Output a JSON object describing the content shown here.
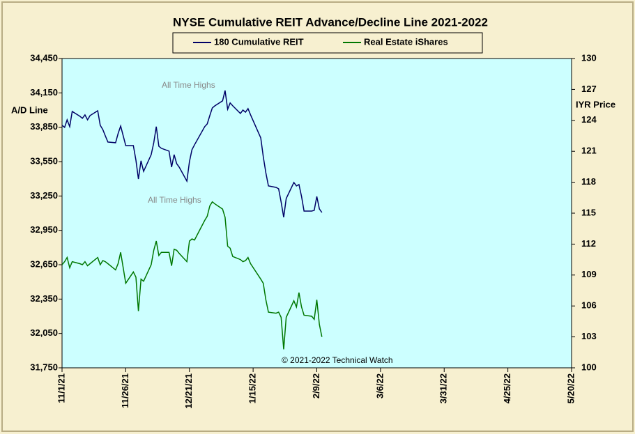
{
  "chart_data": {
    "type": "line",
    "title": "NYSE Cumulative  REIT Advance/Decline  Line 2021-2022",
    "y_label": "A/D Line",
    "y2_label": "IYR Price",
    "annotations": [
      "All Time Highs",
      "All Time Highs",
      "© 2021-2022  Technical Watch"
    ],
    "x": [
      "11/1/21",
      "11/2/21",
      "11/3/21",
      "11/4/21",
      "11/5/21",
      "11/8/21",
      "11/9/21",
      "11/10/21",
      "11/11/21",
      "11/12/21",
      "11/15/21",
      "11/16/21",
      "11/17/21",
      "11/18/21",
      "11/19/21",
      "11/22/21",
      "11/23/21",
      "11/24/21",
      "11/26/21",
      "11/29/21",
      "11/30/21",
      "12/1/21",
      "12/2/21",
      "12/3/21",
      "12/6/21",
      "12/7/21",
      "12/8/21",
      "12/9/21",
      "12/10/21",
      "12/13/21",
      "12/14/21",
      "12/15/21",
      "12/16/21",
      "12/17/21",
      "12/20/21",
      "12/21/21",
      "12/22/21",
      "12/23/21",
      "12/27/21",
      "12/28/21",
      "12/29/21",
      "12/30/21",
      "12/31/21",
      "1/3/22",
      "1/4/22",
      "1/5/22",
      "1/6/22",
      "1/7/22",
      "1/10/22",
      "1/11/22",
      "1/12/22",
      "1/13/22",
      "1/14/22",
      "1/18/22",
      "1/19/22",
      "1/20/22",
      "1/21/22",
      "1/24/22",
      "1/25/22",
      "1/26/22",
      "1/27/22",
      "1/28/22",
      "1/31/22",
      "2/1/22",
      "2/2/22",
      "2/3/22",
      "2/4/22",
      "2/7/22",
      "2/8/22",
      "2/9/22",
      "2/10/22",
      "2/11/22"
    ],
    "series": [
      {
        "name": "180 Cumulative REIT",
        "color": "#000066",
        "values": [
          33867,
          33849,
          33915,
          33855,
          33988,
          33946,
          33928,
          33958,
          33915,
          33952,
          33994,
          33867,
          33830,
          33775,
          33721,
          33715,
          33794,
          33861,
          33690,
          33690,
          33563,
          33398,
          33557,
          33465,
          33611,
          33715,
          33855,
          33684,
          33666,
          33642,
          33502,
          33611,
          33532,
          33502,
          33380,
          33550,
          33654,
          33697,
          33855,
          33879,
          33952,
          34019,
          34037,
          34080,
          34171,
          34007,
          34062,
          34037,
          33970,
          34000,
          33982,
          34013,
          33958,
          33757,
          33593,
          33453,
          33338,
          33325,
          33313,
          33198,
          33064,
          33228,
          33368,
          33338,
          33350,
          33246,
          33118,
          33118,
          33125,
          33246,
          33137,
          33106
        ]
      },
      {
        "name": "Real Estate iShares",
        "color": "#007700",
        "axis": "y2",
        "values": [
          110.0,
          110.3,
          110.7,
          109.7,
          110.3,
          110.1,
          110.0,
          110.3,
          109.9,
          110.1,
          110.7,
          110.0,
          110.4,
          110.3,
          110.1,
          109.5,
          110.1,
          111.2,
          108.2,
          109.3,
          108.8,
          105.5,
          108.6,
          108.4,
          110.0,
          111.4,
          112.3,
          110.9,
          111.2,
          111.2,
          109.9,
          111.5,
          111.4,
          111.1,
          110.3,
          112.3,
          112.5,
          112.4,
          114.3,
          114.7,
          115.7,
          116.1,
          115.9,
          115.4,
          114.6,
          111.8,
          111.6,
          110.8,
          110.5,
          110.3,
          110.4,
          110.7,
          110.1,
          108.6,
          108.2,
          106.6,
          105.4,
          105.3,
          105.4,
          104.9,
          101.8,
          104.9,
          106.5,
          105.9,
          107.3,
          105.9,
          105.1,
          105.0,
          104.7,
          106.6,
          104.2,
          103.0
        ]
      }
    ],
    "xlim": [
      "11/1/21",
      "5/20/22"
    ],
    "xticks": [
      "11/1/21",
      "11/26/21",
      "12/21/21",
      "1/15/22",
      "2/9/22",
      "3/6/22",
      "3/31/22",
      "4/25/22",
      "5/20/22"
    ],
    "ylim": [
      31750,
      34450
    ],
    "yticks": [
      {
        "value": 31750,
        "label": "31,750"
      },
      {
        "value": 32050,
        "label": "32,050"
      },
      {
        "value": 32350,
        "label": "32,350"
      },
      {
        "value": 32650,
        "label": "32,650"
      },
      {
        "value": 32950,
        "label": "32,950"
      },
      {
        "value": 33250,
        "label": "33,250"
      },
      {
        "value": 33550,
        "label": "33,550"
      },
      {
        "value": 33850,
        "label": "33,850"
      },
      {
        "value": 34150,
        "label": "34,150"
      },
      {
        "value": 34450,
        "label": "34,450"
      }
    ],
    "y2lim": [
      100,
      130
    ],
    "y2ticks": [
      100,
      103,
      106,
      109,
      112,
      115,
      118,
      121,
      124,
      127,
      130
    ],
    "grid": false
  }
}
